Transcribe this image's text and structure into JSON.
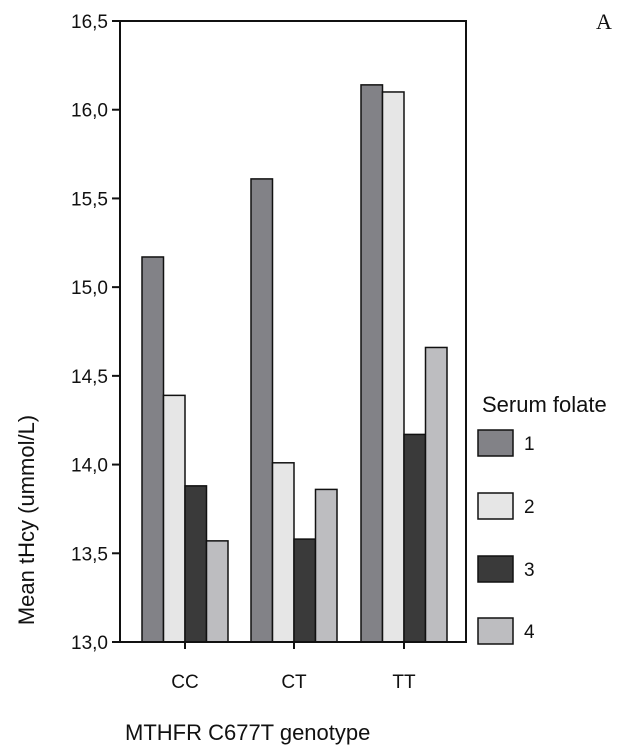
{
  "chart_data": {
    "type": "bar",
    "panel_label": "A",
    "title": "",
    "xlabel": "MTHFR C677T genotype",
    "ylabel": "Mean tHcy (ummol/L)",
    "ylim": [
      13.0,
      16.5
    ],
    "yticks": [
      "13,0",
      "13,5",
      "14,0",
      "14,5",
      "15,0",
      "15,5",
      "16,0",
      "16,5"
    ],
    "ytick_values": [
      13.0,
      13.5,
      14.0,
      14.5,
      15.0,
      15.5,
      16.0,
      16.5
    ],
    "categories": [
      "CC",
      "CT",
      "TT"
    ],
    "legend_title": "Serum folate",
    "legend_placement": "right",
    "grid": false,
    "series": [
      {
        "name": "1",
        "color": "#828287",
        "values": [
          15.17,
          15.61,
          16.14
        ]
      },
      {
        "name": "2",
        "color": "#e6e6e6",
        "values": [
          14.39,
          14.01,
          16.1
        ]
      },
      {
        "name": "3",
        "color": "#3a3a3a",
        "values": [
          13.88,
          13.58,
          14.17
        ]
      },
      {
        "name": "4",
        "color": "#bdbdc0",
        "values": [
          13.57,
          13.86,
          14.66
        ]
      }
    ]
  }
}
